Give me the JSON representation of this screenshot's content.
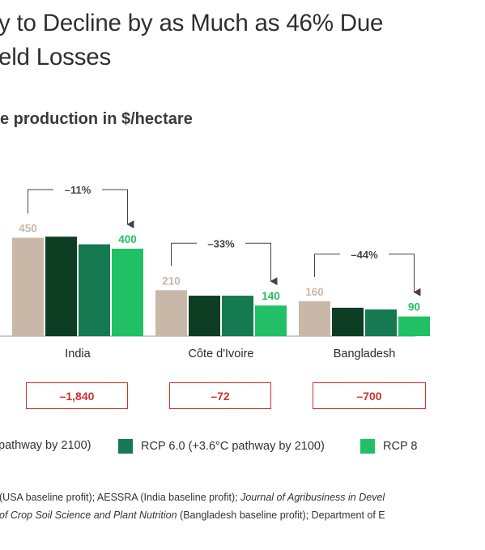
{
  "title": {
    "line1": "y to Decline by as Much as 46% Due",
    "line2": "eld Losses"
  },
  "subtitle": "e production in $/hectare",
  "colors": {
    "baseline": "#c9b8a8",
    "rcp_a": "#0d3d22",
    "rcp6": "#157a52",
    "rcp8": "#21c065",
    "loss": "#d0312d"
  },
  "chart_data": {
    "type": "bar",
    "categories": [
      "India",
      "Côte d'Ivoire",
      "Bangladesh"
    ],
    "series": [
      {
        "values": [
          450,
          210,
          160
        ]
      },
      {
        "values": [
          455,
          185,
          130
        ]
      },
      {
        "name": "RCP 6.0 (+3.6°C pathway by 2100)",
        "values": [
          420,
          185,
          122
        ]
      },
      {
        "name": "RCP 8",
        "values": [
          400,
          140,
          90
        ]
      }
    ],
    "value_labels": [
      {
        "category": "India",
        "first": "450",
        "last": "400"
      },
      {
        "category": "Côte d'Ivoire",
        "first": "210",
        "last": "140"
      },
      {
        "category": "Bangladesh",
        "first": "160",
        "last": "90"
      }
    ],
    "change_labels": [
      "–11%",
      "–33%",
      "–44%"
    ],
    "losses": [
      "–1,840",
      "–72",
      "–700"
    ]
  },
  "legend": {
    "item1": "pathway by 2100)",
    "item2": "RCP 6.0 (+3.6°C pathway by 2100)",
    "item3": "RCP 8"
  },
  "source": {
    "line1_a": "(USA baseline profit); AESSRA (India baseline profit); ",
    "line1_b": "Journal of Agribusiness in Devel",
    "line2_a": "of Crop Soil Science and Plant Nutrition",
    "line2_b": " (Bangladesh baseline profit); Department of E"
  }
}
